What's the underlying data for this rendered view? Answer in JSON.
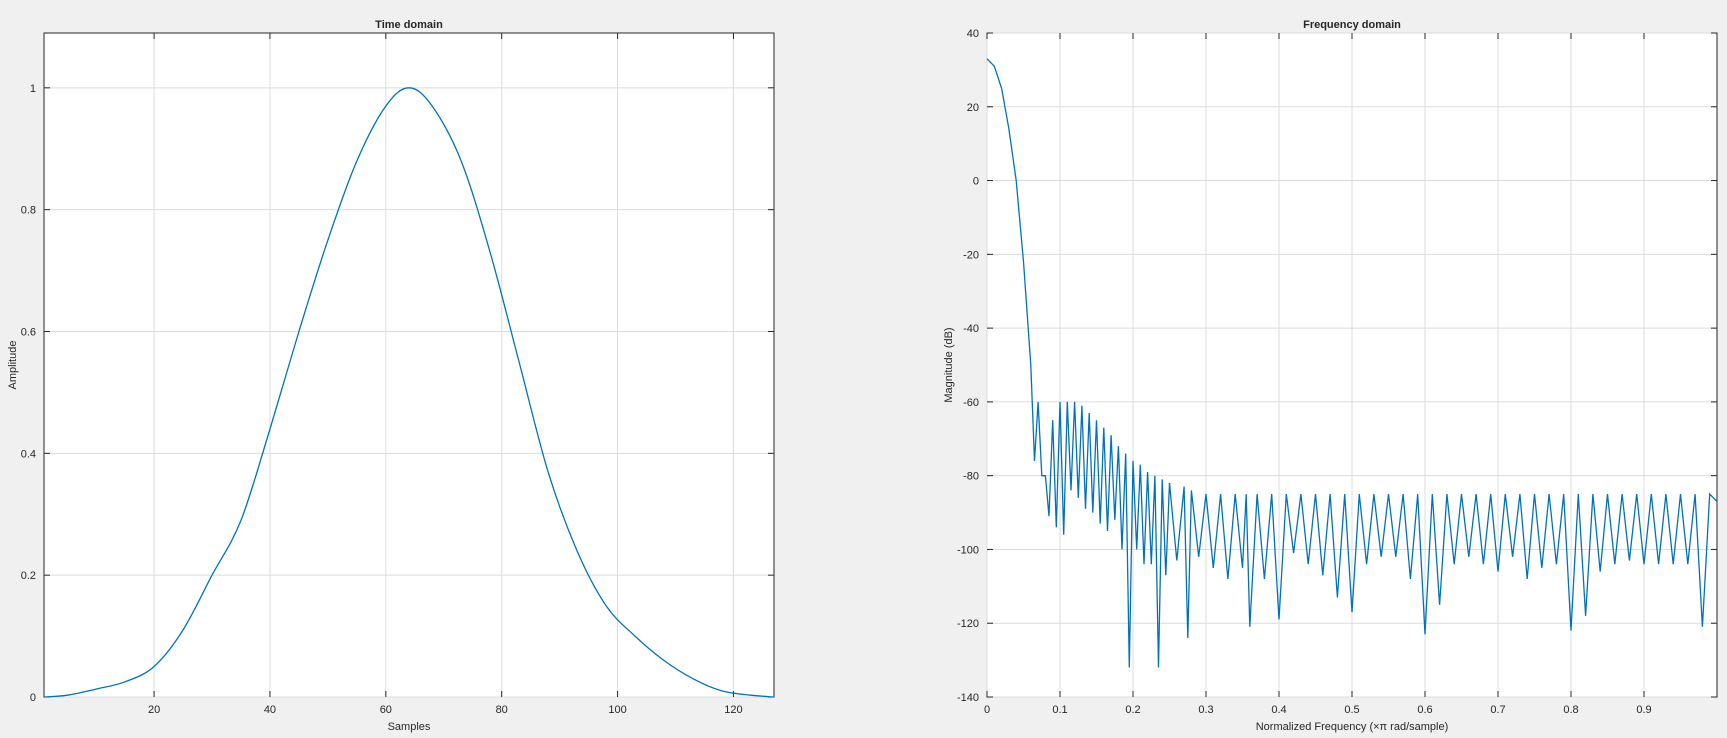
{
  "chart_data": [
    {
      "type": "line",
      "title": "Time domain",
      "xlabel": "Samples",
      "ylabel": "Amplitude",
      "xlim": [
        1,
        127
      ],
      "ylim": [
        0,
        1.09
      ],
      "xticks": [
        20,
        40,
        60,
        80,
        100,
        120
      ],
      "yticks": [
        0,
        0.2,
        0.4,
        0.6,
        0.8,
        1
      ],
      "xtick_labels": [
        "20",
        "40",
        "60",
        "80",
        "100",
        "120"
      ],
      "ytick_labels": [
        "0",
        "0.2",
        "0.4",
        "0.6",
        "0.8",
        "1"
      ],
      "grid": true,
      "color": "#0072bd",
      "series": [
        {
          "x": [
            1,
            5,
            10,
            15,
            20,
            25,
            30,
            35,
            40,
            45,
            50,
            55,
            60,
            64,
            68,
            73,
            78,
            83,
            88,
            93,
            98,
            103,
            108,
            113,
            118,
            123,
            127
          ],
          "y": [
            0.0,
            0.003,
            0.013,
            0.025,
            0.05,
            0.11,
            0.2,
            0.29,
            0.44,
            0.6,
            0.75,
            0.88,
            0.97,
            1.0,
            0.97,
            0.88,
            0.73,
            0.55,
            0.37,
            0.24,
            0.15,
            0.1,
            0.06,
            0.03,
            0.01,
            0.003,
            0.0
          ]
        }
      ]
    },
    {
      "type": "line",
      "title": "Frequency domain",
      "xlabel": "Normalized Frequency  (×π rad/sample)",
      "ylabel": "Magnitude (dB)",
      "xlim": [
        0,
        1
      ],
      "ylim": [
        -140,
        40
      ],
      "xticks": [
        0,
        0.1,
        0.2,
        0.3,
        0.4,
        0.5,
        0.6,
        0.7,
        0.8,
        0.9
      ],
      "yticks": [
        -140,
        -120,
        -100,
        -80,
        -60,
        -40,
        -20,
        0,
        20,
        40
      ],
      "xtick_labels": [
        "0",
        "0.1",
        "0.2",
        "0.3",
        "0.4",
        "0.5",
        "0.6",
        "0.7",
        "0.8",
        "0.9"
      ],
      "ytick_labels": [
        "-140",
        "-120",
        "-100",
        "-80",
        "-60",
        "-40",
        "-20",
        "0",
        "20",
        "40"
      ],
      "grid": true,
      "color": "#0072bd",
      "series": [
        {
          "x": [
            0.0,
            0.01,
            0.02,
            0.03,
            0.04,
            0.05,
            0.06,
            0.065,
            0.07,
            0.075,
            0.08,
            0.085,
            0.09,
            0.095,
            0.1,
            0.105,
            0.11,
            0.115,
            0.12,
            0.125,
            0.13,
            0.135,
            0.14,
            0.145,
            0.15,
            0.155,
            0.16,
            0.165,
            0.17,
            0.175,
            0.18,
            0.185,
            0.19,
            0.195,
            0.2,
            0.205,
            0.21,
            0.215,
            0.22,
            0.225,
            0.23,
            0.235,
            0.24,
            0.245,
            0.25,
            0.26,
            0.27,
            0.275,
            0.28,
            0.29,
            0.3,
            0.31,
            0.32,
            0.33,
            0.34,
            0.35,
            0.355,
            0.36,
            0.37,
            0.38,
            0.39,
            0.4,
            0.41,
            0.42,
            0.43,
            0.44,
            0.45,
            0.46,
            0.47,
            0.48,
            0.49,
            0.5,
            0.51,
            0.52,
            0.53,
            0.54,
            0.55,
            0.56,
            0.57,
            0.58,
            0.59,
            0.6,
            0.61,
            0.62,
            0.63,
            0.64,
            0.65,
            0.66,
            0.67,
            0.68,
            0.69,
            0.7,
            0.71,
            0.72,
            0.73,
            0.74,
            0.75,
            0.76,
            0.77,
            0.78,
            0.79,
            0.8,
            0.81,
            0.82,
            0.83,
            0.84,
            0.85,
            0.86,
            0.87,
            0.88,
            0.89,
            0.9,
            0.91,
            0.92,
            0.93,
            0.94,
            0.95,
            0.96,
            0.97,
            0.98,
            0.99,
            1.0
          ],
          "y": [
            33,
            31,
            25,
            14,
            0,
            -22,
            -50,
            -76,
            -60,
            -80,
            -80,
            -91,
            -65,
            -94,
            -60,
            -96,
            -60,
            -84,
            -60,
            -86,
            -61,
            -89,
            -63,
            -90,
            -65,
            -93,
            -67,
            -95,
            -69,
            -92,
            -72,
            -100,
            -74,
            -132,
            -76,
            -100,
            -77,
            -104,
            -79,
            -104,
            -80,
            -132,
            -81,
            -107,
            -82,
            -103,
            -83,
            -124,
            -84,
            -102,
            -85,
            -105,
            -85,
            -108,
            -85,
            -105,
            -85,
            -121,
            -85,
            -108,
            -85,
            -119,
            -85,
            -101,
            -85,
            -104,
            -85,
            -107,
            -85,
            -113,
            -85,
            -117,
            -85,
            -104,
            -85,
            -102,
            -85,
            -102,
            -85,
            -108,
            -85,
            -123,
            -85,
            -115,
            -85,
            -104,
            -85,
            -102,
            -85,
            -104,
            -85,
            -106,
            -85,
            -102,
            -85,
            -108,
            -85,
            -105,
            -85,
            -104,
            -85,
            -122,
            -85,
            -118,
            -85,
            -106,
            -85,
            -104,
            -85,
            -103,
            -85,
            -104,
            -85,
            -104,
            -85,
            -104,
            -85,
            -104,
            -85,
            -121,
            -85,
            -87
          ]
        }
      ]
    }
  ]
}
